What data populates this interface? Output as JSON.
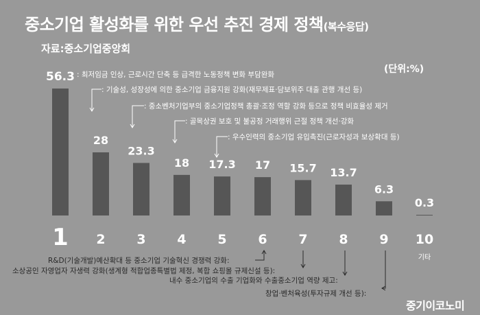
{
  "title": "중소기업 활성화를 위한 우선 추진 경제 정책",
  "title_note": "(복수응답)",
  "source": "자료:중소기업중앙회",
  "unit": "(단위:%)",
  "brand": "중기이코노미",
  "colors": {
    "bar": "#565656",
    "background": "#999999",
    "text": "#ffffff",
    "annotation_bottom": "#2a2a2a"
  },
  "chart_data": {
    "type": "bar",
    "title": "중소기업 활성화를 위한 우선 추진 경제 정책",
    "categories": [
      "1",
      "2",
      "3",
      "4",
      "5",
      "6",
      "7",
      "8",
      "9",
      "10"
    ],
    "values": [
      56.3,
      28,
      23.3,
      18,
      17.3,
      17,
      15.7,
      13.7,
      6.3,
      0.3
    ],
    "value_labels": [
      "56.3",
      "28",
      "23.3",
      "18",
      "17.3",
      "17",
      "15.7",
      "13.7",
      "6.3",
      "0.3"
    ],
    "extra_label_10": "기타",
    "xlabel": "",
    "ylabel": "",
    "ylim": [
      0,
      60
    ],
    "grid": false,
    "legend": "none",
    "annotations_top": [
      {
        "category": "1",
        "text": ": 최저임금 인상, 근로시간 단축 등 급격한 노동정책 변화 부담완화"
      },
      {
        "category": "2",
        "text": ": 기술성, 성장성에 의한 중소기업 금융지원 강화(재무제표·담보위주 대출 관행 개선 등)"
      },
      {
        "category": "3",
        "text": ": 중소벤처기업부의 중소기업정책 총괄·조정 역할 강화 등으로 정책 비효율성 제거"
      },
      {
        "category": "4",
        "text": ": 골목상권 보호 및 불공정 거래행위 근절 정책 개선·강화"
      },
      {
        "category": "5",
        "text": ": 우수인력의 중소기업 유입촉진(근로자성과 보상확대 등)"
      }
    ],
    "annotations_bottom": [
      {
        "category": "6",
        "text": "R&D(기술개발)예산확대 등 중소기업 기술혁신 경쟁력 강화:"
      },
      {
        "category": "7",
        "text": "소상공인 자영업자 자생력 강화(생계형 적합업종특별법 제정, 복합 쇼핑몰 규제신설 등):"
      },
      {
        "category": "8",
        "text": "내수 중소기업의 수출 기업화와 수출중소기업 역량 제고:"
      },
      {
        "category": "9",
        "text": "창업·벤처육성(투자규제 개선 등):"
      }
    ]
  }
}
